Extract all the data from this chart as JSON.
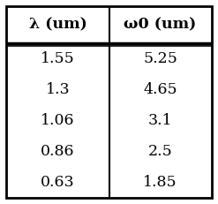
{
  "headers": [
    "λ (um)",
    "ω0 (um)"
  ],
  "rows": [
    [
      "1.55",
      "5.25"
    ],
    [
      "1.3",
      "4.65"
    ],
    [
      "1.06",
      "3.1"
    ],
    [
      "0.86",
      "2.5"
    ],
    [
      "0.63",
      "1.85"
    ]
  ],
  "bg_color": "#ffffff",
  "border_color": "#000000",
  "header_fontsize": 12.5,
  "data_fontsize": 12.5,
  "figsize": [
    2.47,
    2.31
  ],
  "dpi": 100
}
